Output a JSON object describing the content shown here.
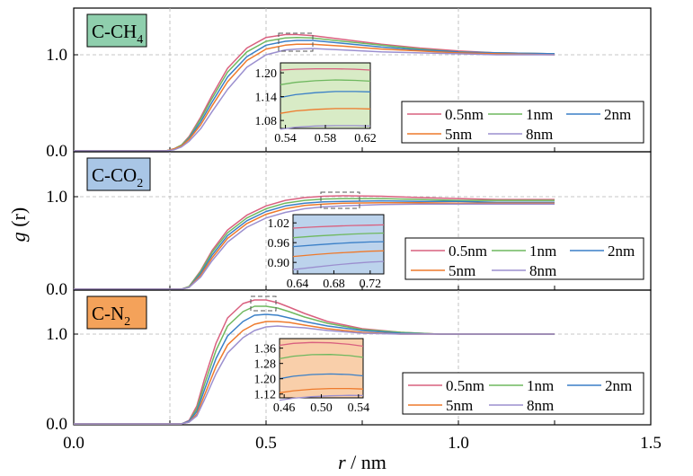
{
  "figure": {
    "ylabel_italic": "g",
    "ylabel_rest": " (r)",
    "xlabel_italic": "r",
    "xlabel_rest": " / nm",
    "x_ticks": [
      "0.0",
      "0.5",
      "1.0",
      "1.5"
    ],
    "y_ticks": [
      "0.0",
      "1.0"
    ]
  },
  "chart_data": [
    {
      "type": "line",
      "panel_label": "C-CH",
      "panel_label_sub": "4",
      "label_color": "#8fcfad",
      "xlim": [
        0.0,
        1.5
      ],
      "ylim": [
        0.0,
        1.45
      ],
      "grid": true,
      "legend": "lower-right",
      "x": [
        0.0,
        0.24,
        0.26,
        0.28,
        0.3,
        0.33,
        0.36,
        0.4,
        0.45,
        0.5,
        0.55,
        0.58,
        0.62,
        0.7,
        0.8,
        0.9,
        1.0,
        1.1,
        1.25
      ],
      "series": [
        {
          "name": "0.5nm",
          "color": "#d9607f",
          "values": [
            0,
            0.0,
            0.02,
            0.06,
            0.15,
            0.35,
            0.58,
            0.86,
            1.07,
            1.18,
            1.21,
            1.21,
            1.2,
            1.16,
            1.11,
            1.07,
            1.04,
            1.02,
            1.01
          ]
        },
        {
          "name": "1nm",
          "color": "#6fb85f",
          "values": [
            0,
            0.0,
            0.02,
            0.06,
            0.14,
            0.33,
            0.55,
            0.82,
            1.03,
            1.14,
            1.175,
            1.18,
            1.175,
            1.14,
            1.1,
            1.06,
            1.03,
            1.02,
            1.01
          ]
        },
        {
          "name": "2nm",
          "color": "#3a7fc7",
          "values": [
            0,
            0.0,
            0.02,
            0.05,
            0.13,
            0.3,
            0.51,
            0.77,
            0.98,
            1.1,
            1.14,
            1.15,
            1.15,
            1.12,
            1.08,
            1.05,
            1.03,
            1.02,
            1.01
          ]
        },
        {
          "name": "5nm",
          "color": "#ee7a2c",
          "values": [
            0,
            0.0,
            0.02,
            0.05,
            0.12,
            0.27,
            0.47,
            0.72,
            0.94,
            1.06,
            1.1,
            1.11,
            1.11,
            1.09,
            1.06,
            1.04,
            1.02,
            1.01,
            1.0
          ]
        },
        {
          "name": "8nm",
          "color": "#9b8fcf",
          "values": [
            0,
            0.0,
            0.01,
            0.04,
            0.1,
            0.23,
            0.41,
            0.64,
            0.87,
            1.0,
            1.05,
            1.06,
            1.065,
            1.05,
            1.03,
            1.02,
            1.01,
            1.0,
            1.0
          ]
        }
      ],
      "inset": {
        "xlim": [
          0.535,
          0.625
        ],
        "ylim": [
          1.06,
          1.225
        ],
        "x_ticks": [
          0.54,
          0.58,
          0.62
        ],
        "y_ticks": [
          1.08,
          1.14,
          1.2
        ],
        "x_tick_labels": [
          "0.54",
          "0.58",
          "0.62"
        ],
        "y_tick_labels": [
          "1.08",
          "1.14",
          "1.20"
        ],
        "fill": "#d8ebc6",
        "x": [
          0.535,
          0.55,
          0.57,
          0.59,
          0.61,
          0.625
        ],
        "series": [
          [
            1.207,
            1.209,
            1.21,
            1.21,
            1.209,
            1.207
          ],
          [
            1.17,
            1.176,
            1.18,
            1.182,
            1.181,
            1.179
          ],
          [
            1.138,
            1.145,
            1.15,
            1.153,
            1.153,
            1.152
          ],
          [
            1.098,
            1.104,
            1.108,
            1.11,
            1.11,
            1.109
          ],
          [
            1.058,
            1.063,
            1.066,
            1.067,
            1.067,
            1.066
          ]
        ]
      }
    },
    {
      "type": "line",
      "panel_label": "C-CO",
      "panel_label_sub": "2",
      "label_color": "#a9c6e6",
      "xlim": [
        0.0,
        1.5
      ],
      "ylim": [
        0.0,
        1.45
      ],
      "grid": true,
      "legend": "lower-right",
      "x": [
        0.0,
        0.28,
        0.3,
        0.33,
        0.36,
        0.4,
        0.45,
        0.5,
        0.55,
        0.6,
        0.65,
        0.7,
        0.8,
        0.9,
        1.0,
        1.1,
        1.25
      ],
      "series": [
        {
          "name": "0.5nm",
          "color": "#d9607f",
          "values": [
            0,
            0.0,
            0.03,
            0.2,
            0.42,
            0.64,
            0.8,
            0.9,
            0.96,
            0.99,
            1.005,
            1.01,
            1.005,
            0.99,
            0.98,
            0.97,
            0.97
          ]
        },
        {
          "name": "1nm",
          "color": "#6fb85f",
          "values": [
            0,
            0.0,
            0.03,
            0.19,
            0.4,
            0.61,
            0.77,
            0.87,
            0.93,
            0.96,
            0.975,
            0.98,
            0.98,
            0.97,
            0.96,
            0.96,
            0.96
          ]
        },
        {
          "name": "2nm",
          "color": "#3a7fc7",
          "values": [
            0,
            0.0,
            0.02,
            0.17,
            0.37,
            0.58,
            0.74,
            0.84,
            0.9,
            0.93,
            0.945,
            0.95,
            0.955,
            0.95,
            0.95,
            0.94,
            0.94
          ]
        },
        {
          "name": "5nm",
          "color": "#ee7a2c",
          "values": [
            0,
            0.0,
            0.02,
            0.15,
            0.34,
            0.55,
            0.71,
            0.81,
            0.87,
            0.905,
            0.92,
            0.93,
            0.935,
            0.935,
            0.93,
            0.93,
            0.93
          ]
        },
        {
          "name": "8nm",
          "color": "#9b8fcf",
          "values": [
            0,
            0.0,
            0.02,
            0.13,
            0.31,
            0.51,
            0.67,
            0.77,
            0.83,
            0.87,
            0.89,
            0.9,
            0.915,
            0.92,
            0.92,
            0.92,
            0.92
          ]
        }
      ],
      "inset": {
        "xlim": [
          0.635,
          0.735
        ],
        "ylim": [
          0.865,
          1.045
        ],
        "x_ticks": [
          0.64,
          0.68,
          0.72
        ],
        "y_ticks": [
          0.9,
          0.96,
          1.02
        ],
        "x_tick_labels": [
          "0.64",
          "0.68",
          "0.72"
        ],
        "y_tick_labels": [
          "0.90",
          "0.96",
          "1.02"
        ],
        "fill": "#bcd3ec",
        "x": [
          0.635,
          0.66,
          0.68,
          0.7,
          0.72,
          0.735
        ],
        "series": [
          [
            1.004,
            1.008,
            1.01,
            1.012,
            1.013,
            1.014
          ],
          [
            0.975,
            0.98,
            0.983,
            0.986,
            0.988,
            0.989
          ],
          [
            0.948,
            0.953,
            0.957,
            0.96,
            0.962,
            0.963
          ],
          [
            0.918,
            0.924,
            0.928,
            0.931,
            0.934,
            0.935
          ],
          [
            0.878,
            0.886,
            0.892,
            0.897,
            0.901,
            0.903
          ]
        ]
      }
    },
    {
      "type": "line",
      "panel_label": "C-N",
      "panel_label_sub": "2",
      "label_color": "#f4a25a",
      "xlim": [
        0.0,
        1.5
      ],
      "ylim": [
        0.0,
        1.45
      ],
      "grid": true,
      "legend": "lower-right",
      "x": [
        0.0,
        0.28,
        0.3,
        0.32,
        0.34,
        0.37,
        0.4,
        0.44,
        0.47,
        0.5,
        0.53,
        0.56,
        0.6,
        0.66,
        0.75,
        0.85,
        0.95,
        1.1,
        1.25
      ],
      "series": [
        {
          "name": "0.5nm",
          "color": "#d9607f",
          "values": [
            0,
            0.0,
            0.04,
            0.2,
            0.5,
            0.9,
            1.18,
            1.34,
            1.38,
            1.38,
            1.35,
            1.3,
            1.23,
            1.14,
            1.06,
            1.02,
            1.0,
            1.0,
            1.0
          ]
        },
        {
          "name": "1nm",
          "color": "#6fb85f",
          "values": [
            0,
            0.0,
            0.03,
            0.17,
            0.44,
            0.82,
            1.09,
            1.25,
            1.31,
            1.31,
            1.29,
            1.25,
            1.19,
            1.12,
            1.05,
            1.02,
            1.0,
            1.0,
            1.0
          ]
        },
        {
          "name": "2nm",
          "color": "#3a7fc7",
          "values": [
            0,
            0.0,
            0.03,
            0.14,
            0.38,
            0.73,
            0.98,
            1.14,
            1.21,
            1.22,
            1.21,
            1.18,
            1.14,
            1.09,
            1.04,
            1.01,
            1.0,
            1.0,
            1.0
          ]
        },
        {
          "name": "5nm",
          "color": "#ee7a2c",
          "values": [
            0,
            0.0,
            0.02,
            0.11,
            0.32,
            0.64,
            0.88,
            1.04,
            1.11,
            1.14,
            1.14,
            1.13,
            1.1,
            1.06,
            1.02,
            1.0,
            1.0,
            1.0,
            1.0
          ]
        },
        {
          "name": "8nm",
          "color": "#9b8fcf",
          "values": [
            0,
            0.0,
            0.02,
            0.09,
            0.27,
            0.56,
            0.79,
            0.96,
            1.04,
            1.08,
            1.09,
            1.08,
            1.07,
            1.04,
            1.01,
            1.0,
            1.0,
            1.0,
            1.0
          ]
        }
      ],
      "inset": {
        "xlim": [
          0.455,
          0.545
        ],
        "ylim": [
          1.1,
          1.41
        ],
        "x_ticks": [
          0.46,
          0.5,
          0.54
        ],
        "y_ticks": [
          1.12,
          1.2,
          1.28,
          1.36
        ],
        "x_tick_labels": [
          "0.46",
          "0.50",
          "0.54"
        ],
        "y_tick_labels": [
          "1.12",
          "1.20",
          "1.28",
          "1.36"
        ],
        "fill": "#f9cfaa",
        "x": [
          0.455,
          0.47,
          0.49,
          0.51,
          0.53,
          0.545
        ],
        "series": [
          [
            1.375,
            1.385,
            1.39,
            1.388,
            1.38,
            1.37
          ],
          [
            1.305,
            1.318,
            1.326,
            1.327,
            1.321,
            1.312
          ],
          [
            1.2,
            1.213,
            1.222,
            1.225,
            1.222,
            1.215
          ],
          [
            1.127,
            1.137,
            1.145,
            1.149,
            1.149,
            1.146
          ],
          [
            1.088,
            1.098,
            1.106,
            1.111,
            1.113,
            1.112
          ]
        ]
      }
    }
  ]
}
